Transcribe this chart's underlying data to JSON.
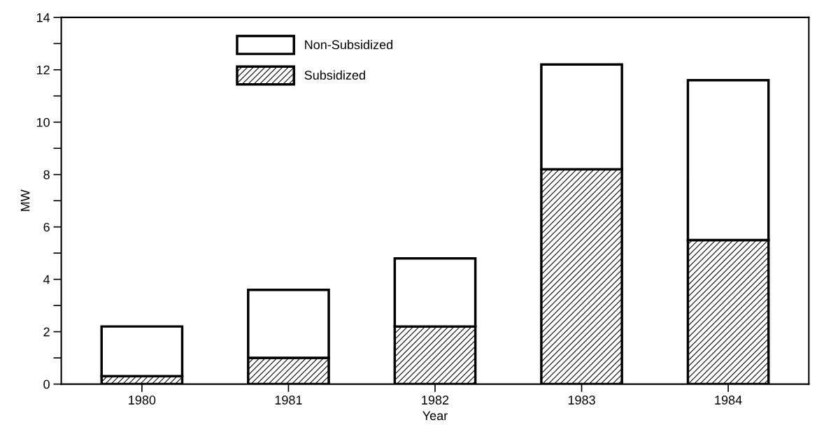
{
  "chart_data": {
    "type": "bar",
    "stacked": true,
    "xlabel": "Year",
    "ylabel": "MW",
    "categories": [
      "1980",
      "1981",
      "1982",
      "1983",
      "1984"
    ],
    "series": [
      {
        "name": "Subsidized",
        "color": "#000000",
        "values": [
          0.3,
          1.0,
          2.2,
          8.2,
          5.5
        ]
      },
      {
        "name": "Non-Subsidized",
        "color": "#ffffff",
        "values": [
          1.9,
          2.6,
          2.6,
          4.0,
          6.1
        ]
      }
    ],
    "ylim": [
      0,
      14
    ],
    "yticks": [
      0,
      {
        "value": 1,
        "label": null
      },
      2,
      {
        "value": 3,
        "label": null
      },
      4,
      {
        "value": 5,
        "label": null
      },
      6,
      {
        "value": 7,
        "label": null
      },
      8,
      {
        "value": 9,
        "label": null
      },
      10,
      {
        "value": 11,
        "label": null
      },
      12,
      {
        "value": 13,
        "label": null
      },
      14
    ],
    "grid": false,
    "legend": "top left"
  }
}
